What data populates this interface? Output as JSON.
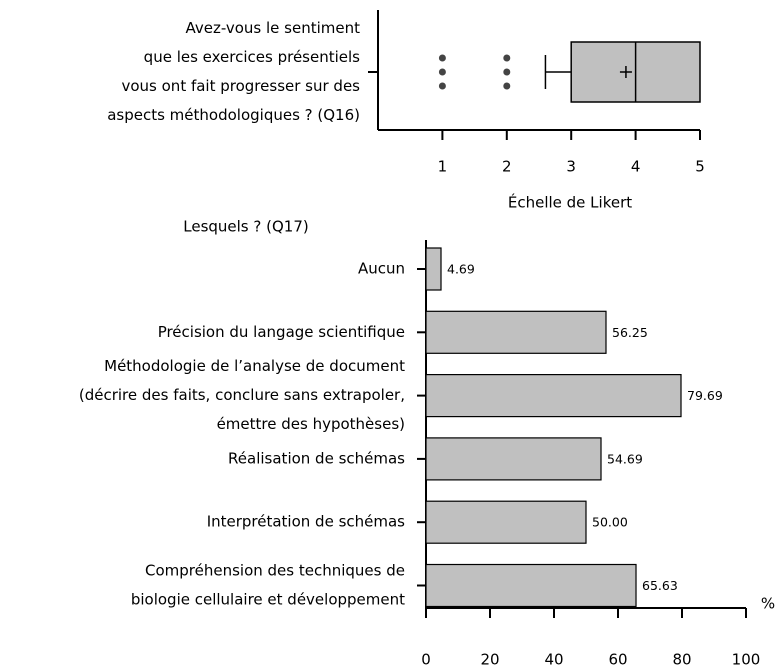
{
  "chart_data": [
    {
      "type": "boxplot",
      "categories": [
        [
          "Avez-vous le sentiment",
          "que les exercices présentiels",
          "vous ont fait progresser sur des",
          "aspects méthodologiques ? (Q16)"
        ]
      ],
      "boxes": [
        {
          "whislo": 2.6,
          "q1": 3,
          "med": 4,
          "q3": 5,
          "whishi": 5,
          "mean": 3.85,
          "fliers": [
            1,
            1,
            1,
            2,
            2,
            2
          ]
        }
      ],
      "xlabel": "Échelle de Likert",
      "xlim": [
        0,
        5
      ],
      "xticks": [
        1,
        2,
        3,
        4,
        5
      ],
      "color": "#c0c0c0"
    },
    {
      "type": "barh",
      "title": "Lesquels ? (Q17)",
      "categories": [
        [
          "Aucun"
        ],
        [
          "Précision du langage scientifique"
        ],
        [
          "Méthodologie de l’analyse de document",
          "(décrire des faits, conclure sans extrapoler,",
          "émettre des hypothèses)"
        ],
        [
          "Réalisation de schémas"
        ],
        [
          "Interprétation de schémas"
        ],
        [
          "Compréhension des techniques de",
          "biologie cellulaire et développement"
        ]
      ],
      "values": [
        4.69,
        56.25,
        79.69,
        54.69,
        50.0,
        65.63
      ],
      "value_labels": [
        "4.69",
        "56.25",
        "79.69",
        "54.69",
        "50.00",
        "65.63"
      ],
      "xlabel": "%",
      "xlim": [
        0,
        100
      ],
      "xticks": [
        0,
        20,
        40,
        60,
        80,
        100
      ],
      "color": "#c0c0c0"
    }
  ]
}
